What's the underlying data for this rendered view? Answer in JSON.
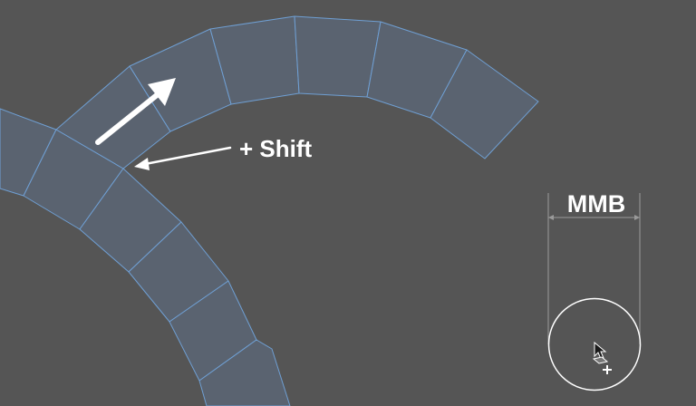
{
  "viewport": {
    "background": "#555555",
    "face_fill": "#5a6370",
    "edge_color": "#6f9fd3"
  },
  "annotations": {
    "shift_label": "+ Shift",
    "mmb_label": "MMB"
  },
  "icons": {
    "drag_direction": "arrow-up-right-icon",
    "shift_pointer": "arrow-left-icon",
    "cursor": "cursor-arrow-icon",
    "brush_radius": "brush-circle-icon"
  }
}
